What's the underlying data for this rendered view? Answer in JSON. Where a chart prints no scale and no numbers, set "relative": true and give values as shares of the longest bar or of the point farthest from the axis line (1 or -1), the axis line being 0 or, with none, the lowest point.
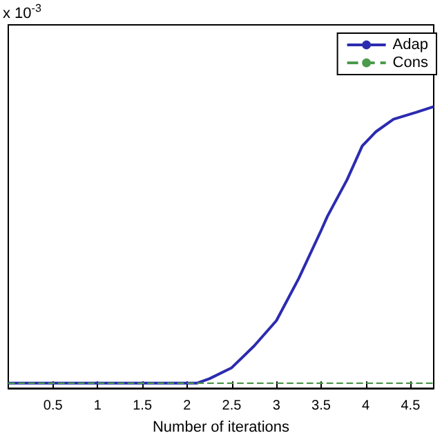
{
  "chart_data": {
    "type": "line",
    "xlabel": "Number of iterations",
    "relative": true,
    "annotations": [
      "x 10$^{-3}$"
    ],
    "x": [
      0,
      0.5,
      1,
      1.5,
      2,
      2.11,
      2.25,
      2.5,
      2.75,
      3,
      3.25,
      3.5,
      3.57,
      3.79,
      3.96,
      4.11,
      4.31,
      4.57,
      4.76
    ],
    "series": [
      {
        "name": "Adap",
        "color": "#2b2bb0",
        "line_style": "solid",
        "values": [
          0.018,
          0.018,
          0.018,
          0.018,
          0.018,
          0.018,
          0.034,
          0.073,
          0.15,
          0.24,
          0.39,
          0.56,
          0.61,
          0.74,
          0.86,
          0.91,
          0.955,
          0.98,
          1.0
        ]
      },
      {
        "name": "Cons",
        "color": "#4c9a4c",
        "line_style": "dashed",
        "values": [
          0.018,
          0.018,
          0.018,
          0.018,
          0.018,
          0.018,
          0.018,
          0.018,
          0.018,
          0.018,
          0.018,
          0.018,
          0.018,
          0.018,
          0.018,
          0.018,
          0.018,
          0.018,
          0.018
        ]
      }
    ],
    "xlim": [
      0,
      4.76
    ],
    "xticks": [
      0.5,
      1,
      1.5,
      2,
      2.5,
      3,
      3.5,
      4,
      4.5
    ],
    "grid": false,
    "legend": "top right",
    "marker": "none"
  }
}
